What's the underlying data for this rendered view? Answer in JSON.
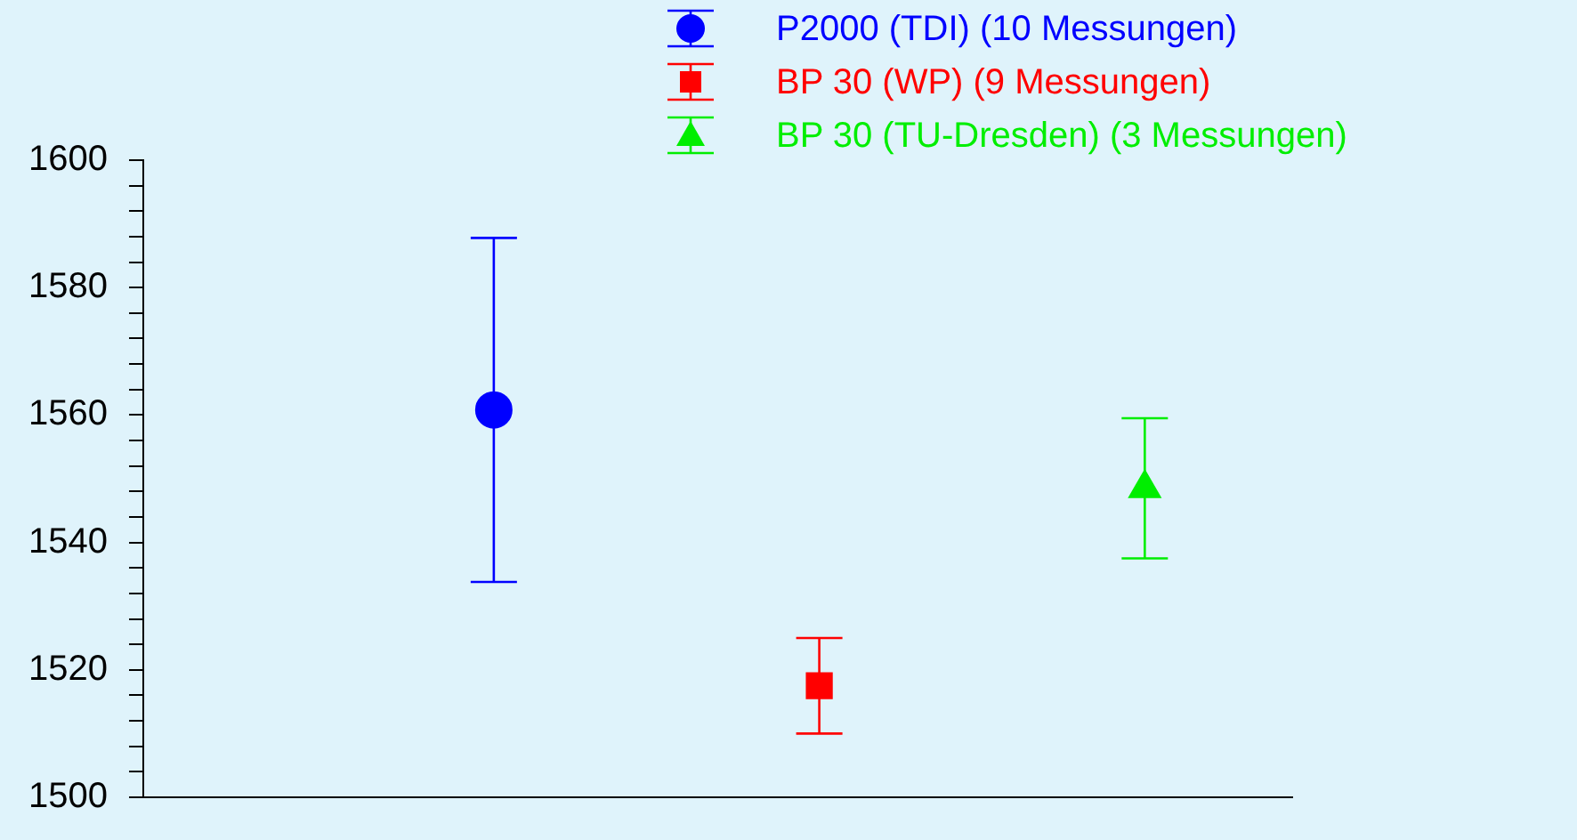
{
  "chart_data": {
    "type": "scatter",
    "categories": [
      null,
      null,
      null
    ],
    "ylim": [
      1500,
      1600
    ],
    "yticks": [
      1500,
      {
        "value": 1504,
        "label": null
      },
      {
        "value": 1508,
        "label": null
      },
      {
        "value": 1512,
        "label": null
      },
      {
        "value": 1516,
        "label": null
      },
      1520,
      {
        "value": 1524,
        "label": null
      },
      {
        "value": 1528,
        "label": null
      },
      {
        "value": 1532,
        "label": null
      },
      {
        "value": 1536,
        "label": null
      },
      1540,
      {
        "value": 1544,
        "label": null
      },
      {
        "value": 1548,
        "label": null
      },
      {
        "value": 1552,
        "label": null
      },
      {
        "value": 1556,
        "label": null
      },
      1560,
      {
        "value": 1564,
        "label": null
      },
      {
        "value": 1568,
        "label": null
      },
      {
        "value": 1572,
        "label": null
      },
      {
        "value": 1576,
        "label": null
      },
      1580,
      {
        "value": 1584,
        "label": null
      },
      {
        "value": 1588,
        "label": null
      },
      {
        "value": 1592,
        "label": null
      },
      {
        "value": 1596,
        "label": null
      },
      1600
    ],
    "grid": false,
    "legend": "top right",
    "series": [
      {
        "name": "P2000 (TDI) (10 Messungen)",
        "color": "#0000ff",
        "marker": "circle",
        "values": [
          1560.8,
          null,
          null
        ],
        "errors": [
          27,
          null,
          null
        ]
      },
      {
        "name": "BP 30 (WP) (9 Messungen)",
        "color": "#ff0000",
        "marker": "square",
        "values": [
          null,
          1517.5,
          null
        ],
        "errors": [
          null,
          7.5,
          null
        ]
      },
      {
        "name": "BP 30 (TU-Dresden) (3 Messungen)",
        "color": "#00ee00",
        "marker": "triangle",
        "values": [
          null,
          null,
          1548.5
        ],
        "errors": [
          null,
          null,
          11
        ]
      }
    ]
  }
}
